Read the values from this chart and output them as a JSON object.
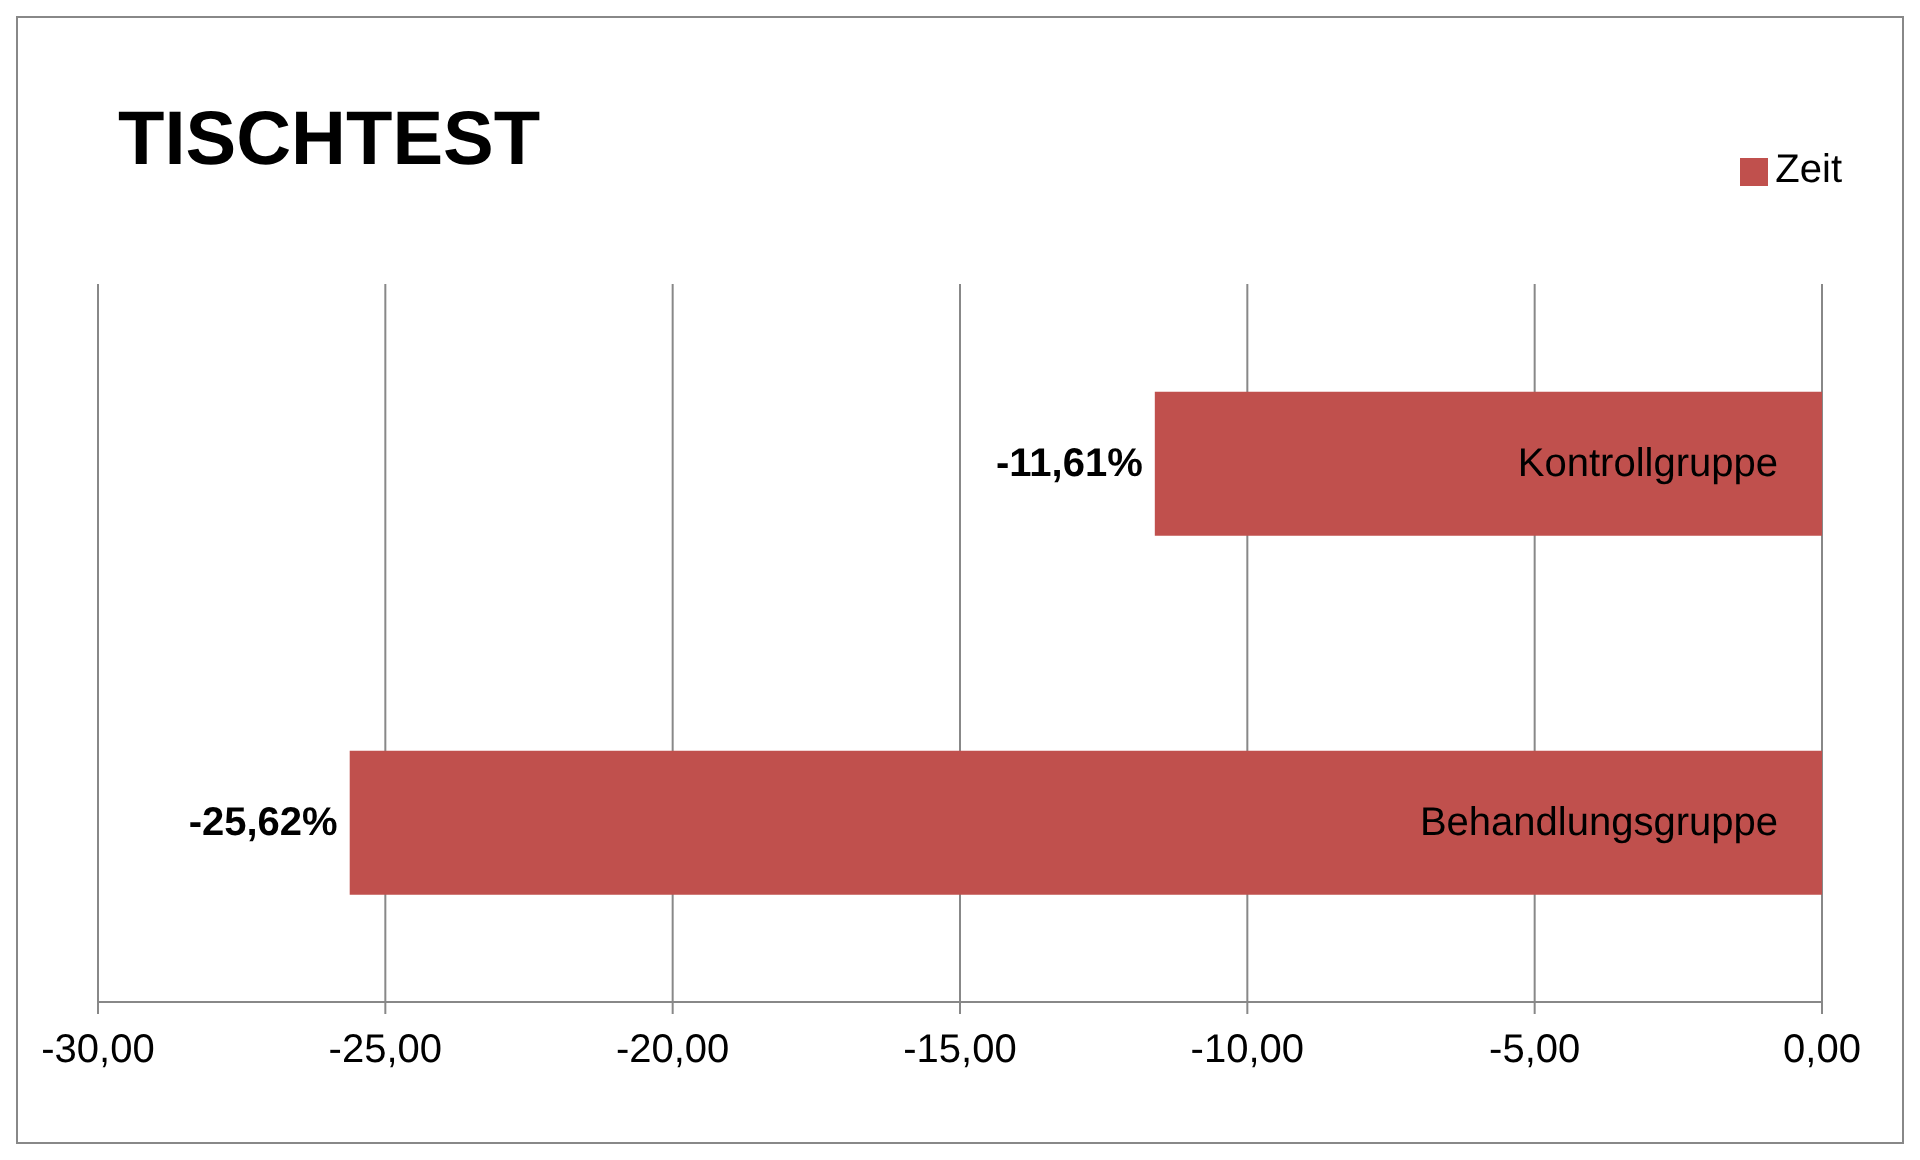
{
  "chart_data": {
    "type": "bar",
    "title": "TISCHTEST",
    "orientation": "horizontal",
    "categories": [
      "Kontrollgruppe",
      "Behandlungsgruppe"
    ],
    "series": [
      {
        "name": "Zeit",
        "color": "#c0504d",
        "values": [
          -11.61,
          -25.62
        ],
        "value_labels": [
          "-11,61%",
          "-25,62%"
        ]
      }
    ],
    "xlim": [
      -30,
      0
    ],
    "xticks": [
      {
        "value": -30,
        "label": "-30,00"
      },
      {
        "value": -25,
        "label": "-25,00"
      },
      {
        "value": -20,
        "label": "-20,00"
      },
      {
        "value": -15,
        "label": "-15,00"
      },
      {
        "value": -10,
        "label": "-10,00"
      },
      {
        "value": -5,
        "label": "-5,00"
      },
      {
        "value": 0,
        "label": "0,00"
      }
    ],
    "grid": "x",
    "legend": "top right"
  }
}
